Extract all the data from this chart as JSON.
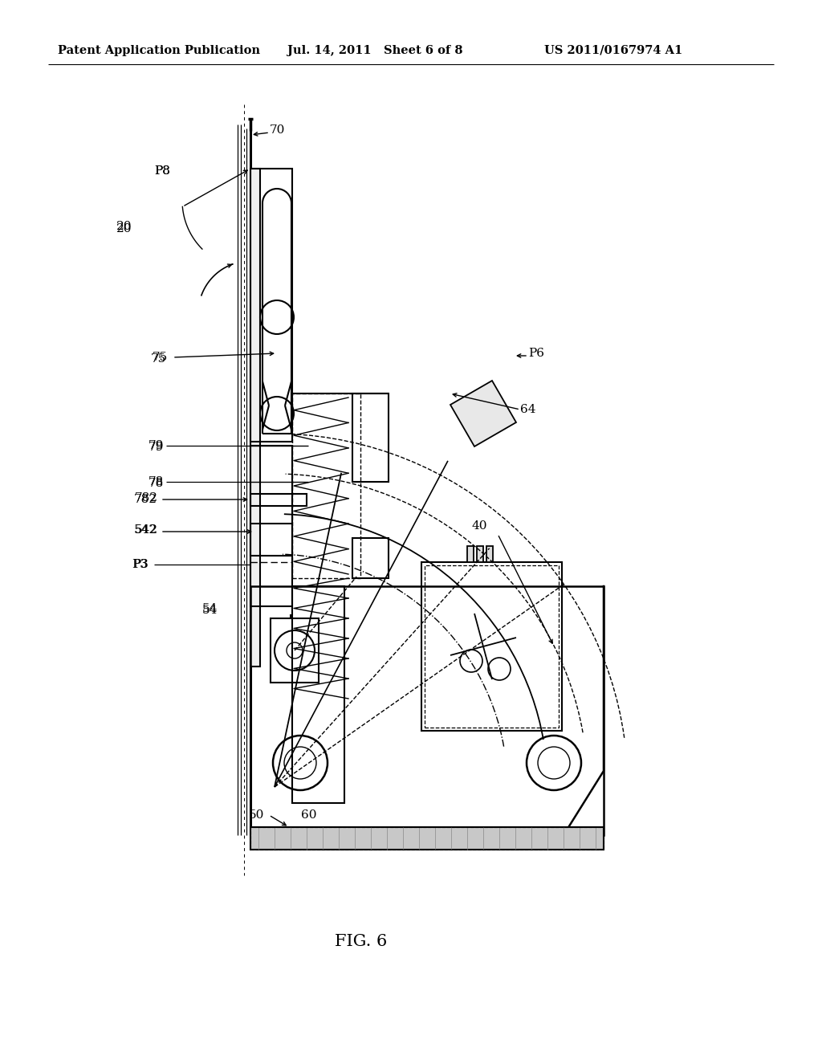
{
  "bg_color": "#ffffff",
  "header_left": "Patent Application Publication",
  "header_mid": "Jul. 14, 2011   Sheet 6 of 8",
  "header_right": "US 2011/0167974 A1",
  "fig_label": "FIG. 6"
}
